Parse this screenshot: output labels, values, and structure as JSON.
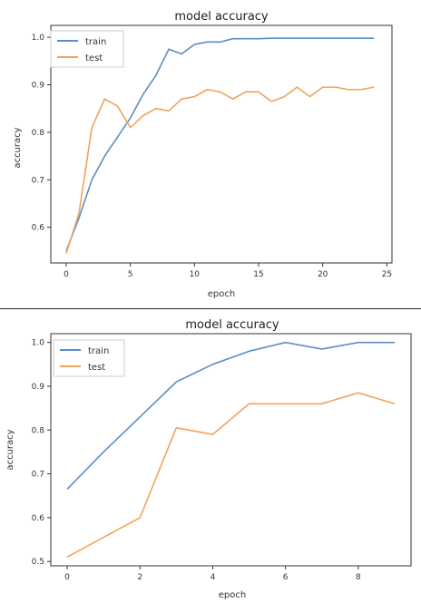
{
  "chart_data": [
    {
      "type": "line",
      "title": "model accuracy",
      "xlabel": "epoch",
      "ylabel": "accuracy",
      "xlim": [
        -1.2,
        25.4
      ],
      "ylim": [
        0.525,
        1.025
      ],
      "xticks": [
        0,
        5,
        10,
        15,
        20,
        25
      ],
      "yticks": [
        0.6,
        0.7,
        0.8,
        0.9,
        1.0
      ],
      "xtick_labels": [
        "0",
        "5",
        "10",
        "15",
        "20",
        "25"
      ],
      "ytick_labels": [
        "0.6",
        "0.7",
        "0.8",
        "0.9",
        "1.0"
      ],
      "legend": "top-left",
      "grid": false,
      "x": [
        0,
        1,
        2,
        3,
        4,
        5,
        6,
        7,
        8,
        9,
        10,
        11,
        12,
        13,
        14,
        15,
        16,
        17,
        18,
        19,
        20,
        21,
        22,
        23,
        24
      ],
      "series": [
        {
          "name": "train",
          "color": "#5a8fc4",
          "values": [
            0.55,
            0.62,
            0.7,
            0.75,
            0.79,
            0.83,
            0.88,
            0.92,
            0.975,
            0.965,
            0.985,
            0.99,
            0.99,
            0.997,
            0.997,
            0.997,
            0.998,
            0.998,
            0.998,
            0.998,
            0.998,
            0.998,
            0.998,
            0.998,
            0.998
          ]
        },
        {
          "name": "test",
          "color": "#f0a35c",
          "values": [
            0.545,
            0.63,
            0.81,
            0.87,
            0.855,
            0.81,
            0.835,
            0.85,
            0.845,
            0.87,
            0.875,
            0.89,
            0.885,
            0.87,
            0.885,
            0.885,
            0.865,
            0.875,
            0.895,
            0.875,
            0.895,
            0.895,
            0.89,
            0.89,
            0.895
          ]
        }
      ]
    },
    {
      "type": "line",
      "title": "model accuracy",
      "xlabel": "epoch",
      "ylabel": "accuracy",
      "xlim": [
        -0.45,
        9.45
      ],
      "ylim": [
        0.49,
        1.02
      ],
      "xticks": [
        0,
        2,
        4,
        6,
        8
      ],
      "yticks": [
        0.5,
        0.6,
        0.7,
        0.8,
        0.9,
        1.0
      ],
      "xtick_labels": [
        "0",
        "2",
        "4",
        "6",
        "8"
      ],
      "ytick_labels": [
        "0.5",
        "0.6",
        "0.7",
        "0.8",
        "0.9",
        "1.0"
      ],
      "legend": "top-left",
      "grid": false,
      "x": [
        0,
        1,
        2,
        3,
        4,
        5,
        6,
        7,
        8,
        9
      ],
      "series": [
        {
          "name": "train",
          "color": "#5a8fc4",
          "values": [
            0.665,
            0.75,
            0.83,
            0.91,
            0.95,
            0.98,
            1.0,
            0.985,
            1.0,
            1.0
          ]
        },
        {
          "name": "test",
          "color": "#f0a35c",
          "values": [
            0.51,
            0.555,
            0.6,
            0.805,
            0.79,
            0.86,
            0.86,
            0.86,
            0.885,
            0.86
          ]
        }
      ]
    }
  ]
}
